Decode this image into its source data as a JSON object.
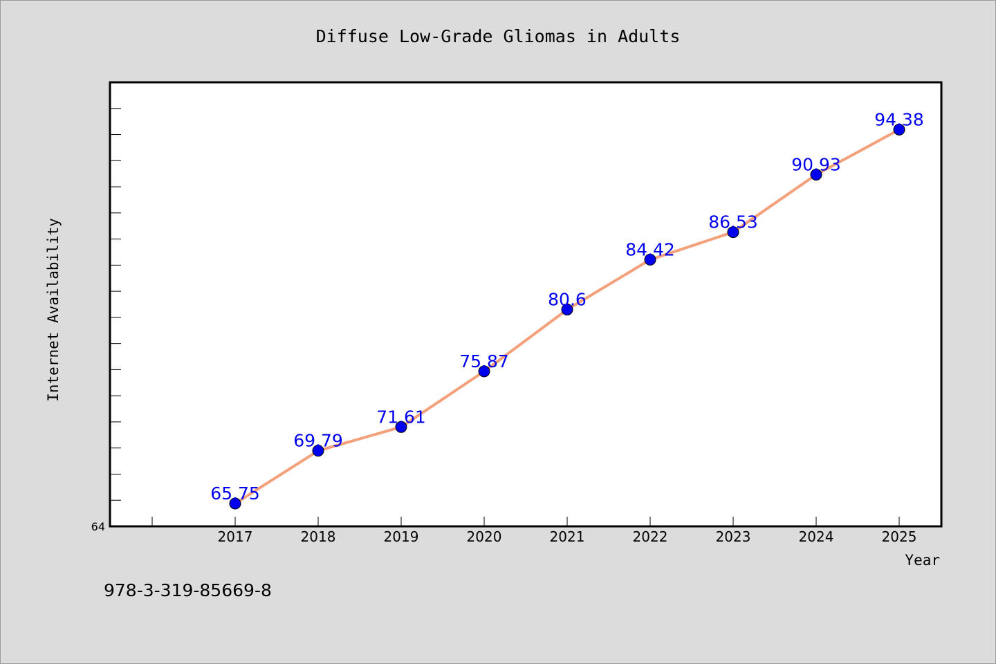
{
  "chart_data": {
    "type": "line",
    "title": "Diffuse Low-Grade Gliomas in Adults",
    "xlabel": "Year",
    "ylabel": "Internet Availability",
    "categories": [
      "2017",
      "2018",
      "2019",
      "2020",
      "2021",
      "2022",
      "2023",
      "2024",
      "2025"
    ],
    "series": [
      {
        "values": [
          65.75,
          69.79,
          71.61,
          75.87,
          80.6,
          84.42,
          86.53,
          90.93,
          94.38
        ],
        "labels": [
          "65.75",
          "69.79",
          "71.61",
          "75.87",
          "80.6",
          "84.42",
          "86.53",
          "90.93",
          "94.38"
        ],
        "line_color": "#f4a07a",
        "marker_color": "#0000ee",
        "label_color": "#0000ee"
      }
    ],
    "ylim": [
      64,
      98
    ],
    "y_tick_labels": [
      "64"
    ],
    "grid": false,
    "legend": "none"
  },
  "annotation": "978-3-319-85669-8",
  "colors": {
    "background": "#dcdcdc",
    "plot_background": "#ffffff",
    "axis": "#000000"
  }
}
